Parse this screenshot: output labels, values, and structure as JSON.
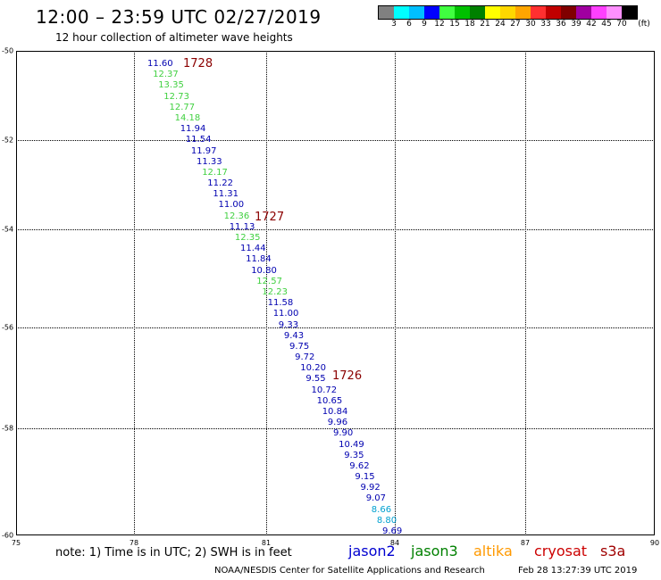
{
  "header": {
    "title": "12:00 – 23:59 UTC 02/27/2019",
    "subtitle": "12 hour collection of altimeter wave heights"
  },
  "color_scale": {
    "colors": [
      "#808080",
      "#00ffff",
      "#00bfff",
      "#0000ff",
      "#40ff40",
      "#00c000",
      "#008000",
      "#ffff00",
      "#ffd700",
      "#ffa500",
      "#ff3030",
      "#c00000",
      "#800000",
      "#a000a0",
      "#ff40ff",
      "#ff90ff",
      "#000000"
    ],
    "labels": [
      "3",
      "6",
      "9",
      "12",
      "15",
      "18",
      "21",
      "24",
      "27",
      "30",
      "33",
      "36",
      "39",
      "42",
      "45",
      "70"
    ],
    "unit": "(ft)"
  },
  "axes": {
    "y_labels": [
      "-50",
      "-52",
      "-54",
      "-56",
      "-58",
      "-60"
    ],
    "x_labels": [
      "75",
      "78",
      "81",
      "84",
      "87",
      "90"
    ]
  },
  "passes": [
    {
      "label": "1728"
    },
    {
      "label": "1727"
    },
    {
      "label": "1726"
    }
  ],
  "observations": [
    {
      "value": "11.60",
      "color": "#0000b0"
    },
    {
      "value": "12.37",
      "color": "#40d040"
    },
    {
      "value": "13.35",
      "color": "#40d040"
    },
    {
      "value": "12.73",
      "color": "#40d040"
    },
    {
      "value": "12.77",
      "color": "#40d040"
    },
    {
      "value": "14.18",
      "color": "#40d040"
    },
    {
      "value": "11.94",
      "color": "#0000b0"
    },
    {
      "value": "11.54",
      "color": "#0000b0"
    },
    {
      "value": "11.97",
      "color": "#0000b0"
    },
    {
      "value": "11.33",
      "color": "#0000b0"
    },
    {
      "value": "12.17",
      "color": "#40d040"
    },
    {
      "value": "11.22",
      "color": "#0000b0"
    },
    {
      "value": "11.31",
      "color": "#0000b0"
    },
    {
      "value": "11.00",
      "color": "#0000b0"
    },
    {
      "value": "12.36",
      "color": "#40d040"
    },
    {
      "value": "11.13",
      "color": "#0000b0"
    },
    {
      "value": "12.35",
      "color": "#40d040"
    },
    {
      "value": "11.44",
      "color": "#0000b0"
    },
    {
      "value": "11.84",
      "color": "#0000b0"
    },
    {
      "value": "10.80",
      "color": "#0000b0"
    },
    {
      "value": "12.57",
      "color": "#40d040"
    },
    {
      "value": "12.23",
      "color": "#40d040"
    },
    {
      "value": "11.58",
      "color": "#0000b0"
    },
    {
      "value": "11.00",
      "color": "#0000b0"
    },
    {
      "value": "9.33",
      "color": "#0000b0"
    },
    {
      "value": "9.43",
      "color": "#0000b0"
    },
    {
      "value": "9.75",
      "color": "#0000b0"
    },
    {
      "value": "9.72",
      "color": "#0000b0"
    },
    {
      "value": "10.20",
      "color": "#0000b0"
    },
    {
      "value": "9.55",
      "color": "#0000b0"
    },
    {
      "value": "10.72",
      "color": "#0000b0"
    },
    {
      "value": "10.65",
      "color": "#0000b0"
    },
    {
      "value": "10.84",
      "color": "#0000b0"
    },
    {
      "value": "9.96",
      "color": "#0000b0"
    },
    {
      "value": "9.90",
      "color": "#0000b0"
    },
    {
      "value": "10.49",
      "color": "#0000b0"
    },
    {
      "value": "9.35",
      "color": "#0000b0"
    },
    {
      "value": "9.62",
      "color": "#0000b0"
    },
    {
      "value": "9.15",
      "color": "#0000b0"
    },
    {
      "value": "9.92",
      "color": "#0000b0"
    },
    {
      "value": "9.07",
      "color": "#0000b0"
    },
    {
      "value": "8.66",
      "color": "#00a0d0"
    },
    {
      "value": "8.80",
      "color": "#00a0d0"
    },
    {
      "value": "9.69",
      "color": "#0000b0"
    }
  ],
  "footer": {
    "note": "note: 1) Time is in UTC; 2) SWH is in feet",
    "legend": [
      {
        "label": "jason2",
        "color": "#0000d0"
      },
      {
        "label": "jason3",
        "color": "#008000"
      },
      {
        "label": "altika",
        "color": "#ff9900"
      },
      {
        "label": "cryosat",
        "color": "#cc0000"
      },
      {
        "label": "s3a",
        "color": "#a00000"
      }
    ],
    "credit": "NOAA/NESDIS Center for Satellite Applications and Research",
    "timestamp": "Feb 28 13:27:39 UTC 2019"
  }
}
